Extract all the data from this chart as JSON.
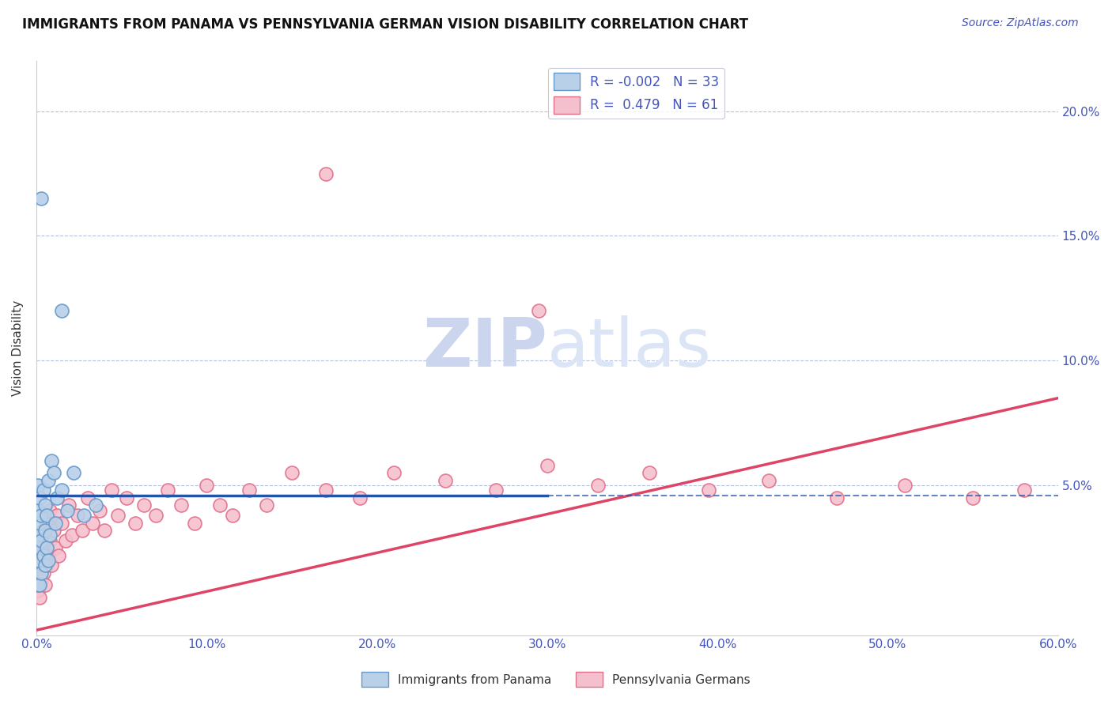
{
  "title": "IMMIGRANTS FROM PANAMA VS PENNSYLVANIA GERMAN VISION DISABILITY CORRELATION CHART",
  "source_text": "Source: ZipAtlas.com",
  "ylabel": "Vision Disability",
  "xlim": [
    0.0,
    0.6
  ],
  "ylim": [
    -0.01,
    0.22
  ],
  "yticks": [
    0.0,
    0.05,
    0.1,
    0.15,
    0.2
  ],
  "ytick_labels": [
    "",
    "5.0%",
    "10.0%",
    "15.0%",
    "20.0%"
  ],
  "xticks": [
    0.0,
    0.1,
    0.2,
    0.3,
    0.4,
    0.5,
    0.6
  ],
  "xtick_labels": [
    "0.0%",
    "10.0%",
    "20.0%",
    "30.0%",
    "40.0%",
    "50.0%",
    "60.0%"
  ],
  "series1_name": "Immigrants from Panama",
  "series1_color": "#b8d0e8",
  "series1_edge_color": "#6699cc",
  "series1_R": -0.002,
  "series1_N": 33,
  "series1_line_color": "#2255aa",
  "series2_name": "Pennsylvania Germans",
  "series2_color": "#f5c0ce",
  "series2_edge_color": "#e0708a",
  "series2_R": 0.479,
  "series2_N": 61,
  "series2_line_color": "#dd4466",
  "axis_color": "#4455bb",
  "grid_color": "#aabbdd",
  "watermark_zip": "ZIP",
  "watermark_atlas": "atlas",
  "watermark_color": "#ccd5ee",
  "panama_x": [
    0.001,
    0.001,
    0.001,
    0.001,
    0.001,
    0.002,
    0.002,
    0.002,
    0.002,
    0.003,
    0.003,
    0.003,
    0.004,
    0.004,
    0.005,
    0.005,
    0.005,
    0.006,
    0.006,
    0.007,
    0.007,
    0.008,
    0.009,
    0.01,
    0.011,
    0.012,
    0.015,
    0.018,
    0.022,
    0.028,
    0.035,
    0.015,
    0.003
  ],
  "panama_y": [
    0.01,
    0.02,
    0.03,
    0.04,
    0.05,
    0.01,
    0.025,
    0.035,
    0.045,
    0.015,
    0.028,
    0.038,
    0.022,
    0.048,
    0.018,
    0.032,
    0.042,
    0.025,
    0.038,
    0.02,
    0.052,
    0.03,
    0.06,
    0.055,
    0.035,
    0.045,
    0.048,
    0.04,
    0.055,
    0.038,
    0.042,
    0.12,
    0.165
  ],
  "pagerman_x": [
    0.001,
    0.001,
    0.002,
    0.002,
    0.003,
    0.003,
    0.004,
    0.004,
    0.005,
    0.005,
    0.006,
    0.006,
    0.007,
    0.008,
    0.008,
    0.009,
    0.01,
    0.011,
    0.012,
    0.013,
    0.015,
    0.017,
    0.019,
    0.021,
    0.024,
    0.027,
    0.03,
    0.033,
    0.037,
    0.04,
    0.044,
    0.048,
    0.053,
    0.058,
    0.063,
    0.07,
    0.077,
    0.085,
    0.093,
    0.1,
    0.108,
    0.115,
    0.125,
    0.135,
    0.15,
    0.17,
    0.19,
    0.21,
    0.24,
    0.27,
    0.3,
    0.33,
    0.36,
    0.395,
    0.43,
    0.47,
    0.51,
    0.55,
    0.58,
    0.295,
    0.17
  ],
  "pagerman_y": [
    0.008,
    0.018,
    0.005,
    0.022,
    0.012,
    0.028,
    0.015,
    0.032,
    0.01,
    0.025,
    0.018,
    0.035,
    0.022,
    0.028,
    0.04,
    0.018,
    0.032,
    0.025,
    0.038,
    0.022,
    0.035,
    0.028,
    0.042,
    0.03,
    0.038,
    0.032,
    0.045,
    0.035,
    0.04,
    0.032,
    0.048,
    0.038,
    0.045,
    0.035,
    0.042,
    0.038,
    0.048,
    0.042,
    0.035,
    0.05,
    0.042,
    0.038,
    0.048,
    0.042,
    0.055,
    0.048,
    0.045,
    0.055,
    0.052,
    0.048,
    0.058,
    0.05,
    0.055,
    0.048,
    0.052,
    0.045,
    0.05,
    0.045,
    0.048,
    0.12,
    0.175
  ]
}
